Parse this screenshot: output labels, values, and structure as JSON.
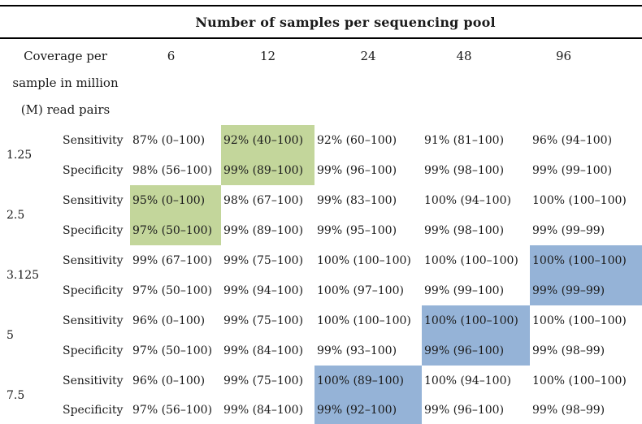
{
  "page": {
    "background": "#ffffff",
    "text_color": "#1a1a1a",
    "rule_color": "#000000"
  },
  "table": {
    "pool_header": "Number of samples per sequencing pool",
    "coverage_header_lines": [
      "Coverage per",
      "sample in million",
      "(M) read pairs"
    ],
    "pool_sizes": [
      "6",
      "12",
      "24",
      "48",
      "96"
    ],
    "measure_labels": {
      "sensitivity": "Sensitivity",
      "specificity": "Specificity"
    },
    "highlight_colors": {
      "green": "#c3d69b",
      "blue": "#95b3d7"
    },
    "groups": [
      {
        "coverage": "1.25",
        "highlight": {
          "column": 1,
          "color": "green"
        },
        "sensitivity": [
          "87% (0–100)",
          "92% (40–100)",
          "92% (60–100)",
          "91% (81–100)",
          "96% (94–100)"
        ],
        "specificity": [
          "98% (56–100)",
          "99% (89–100)",
          "99% (96–100)",
          "99% (98–100)",
          "99% (99–100)"
        ]
      },
      {
        "coverage": "2.5",
        "highlight": {
          "column": 0,
          "color": "green"
        },
        "sensitivity": [
          "95% (0–100)",
          "98% (67–100)",
          "99% (83–100)",
          "100% (94–100)",
          "100% (100–100)"
        ],
        "specificity": [
          "97% (50–100)",
          "99% (89–100)",
          "99% (95–100)",
          "99% (98–100)",
          "99% (99–99)"
        ]
      },
      {
        "coverage": "3.125",
        "highlight": {
          "column": 4,
          "color": "blue"
        },
        "sensitivity": [
          "99% (67–100)",
          "99% (75–100)",
          "100% (100–100)",
          "100% (100–100)",
          "100% (100–100)"
        ],
        "specificity": [
          "97% (50–100)",
          "99% (94–100)",
          "100% (97–100)",
          "99% (99–100)",
          "99% (99–99)"
        ]
      },
      {
        "coverage": "5",
        "highlight": {
          "column": 3,
          "color": "blue"
        },
        "sensitivity": [
          "96% (0–100)",
          "99% (75–100)",
          "100% (100–100)",
          "100% (100–100)",
          "100% (100–100)"
        ],
        "specificity": [
          "97% (50–100)",
          "99% (84–100)",
          "99% (93–100)",
          "99% (96–100)",
          "99% (98–99)"
        ]
      },
      {
        "coverage": "7.5",
        "highlight": {
          "column": 2,
          "color": "blue"
        },
        "sensitivity": [
          "96% (0–100)",
          "99% (75–100)",
          "100% (89–100)",
          "100% (94–100)",
          "100% (100–100)"
        ],
        "specificity": [
          "97% (56–100)",
          "99% (84–100)",
          "99% (92–100)",
          "99% (96–100)",
          "99% (98–99)"
        ]
      }
    ]
  }
}
